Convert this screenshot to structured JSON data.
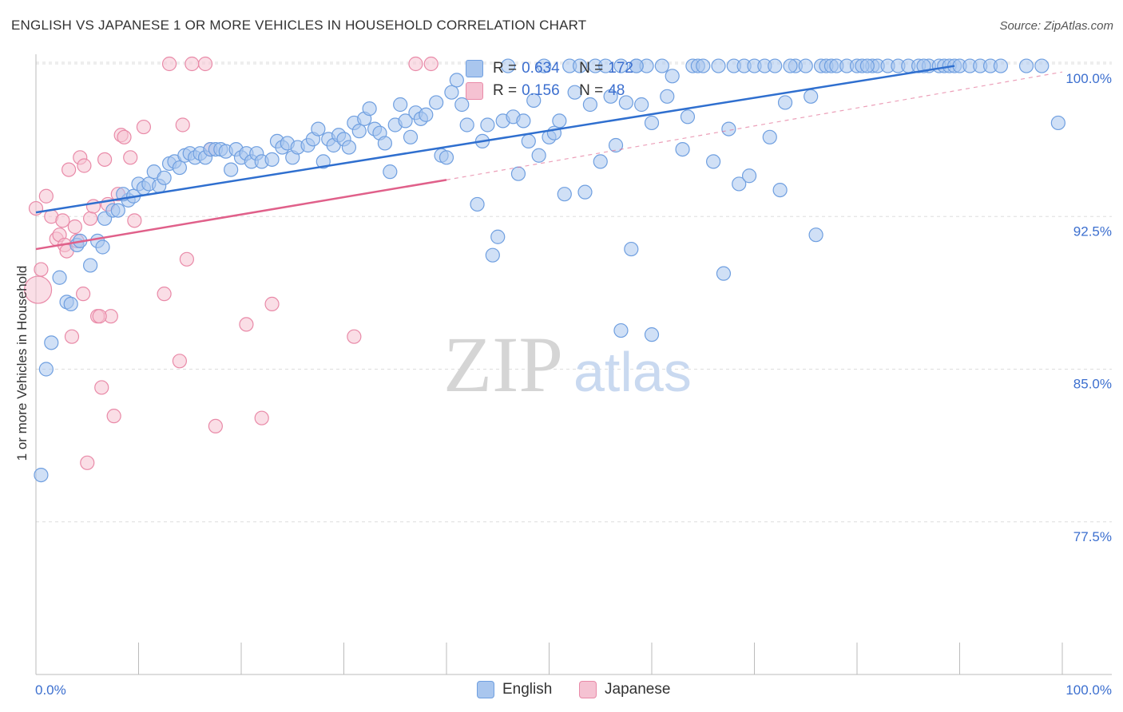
{
  "title": "ENGLISH VS JAPANESE 1 OR MORE VEHICLES IN HOUSEHOLD CORRELATION CHART",
  "source": "Source: ZipAtlas.com",
  "watermark": {
    "zip": "ZIP",
    "atlas": "atlas"
  },
  "colors": {
    "english": "#6f9fe0",
    "english_fill": "#a9c6ee",
    "english_line": "#2f6fcf",
    "japanese": "#e98aa8",
    "japanese_fill": "#f5c2d2",
    "japanese_line": "#e0608a",
    "tick_label": "#3c6fcf",
    "grid": "#dddddd"
  },
  "stats": {
    "english": {
      "r_label": "R = ",
      "r_value": "0.634",
      "n_label": "N = ",
      "n_value": "172"
    },
    "japanese": {
      "r_label": "R = ",
      "r_value": "0.156",
      "n_label": "N = ",
      "n_value": "48"
    }
  },
  "legend": {
    "english": "English",
    "japanese": "Japanese"
  },
  "chart_data": {
    "type": "scatter",
    "title": "ENGLISH VS JAPANESE 1 OR MORE VEHICLES IN HOUSEHOLD CORRELATION CHART",
    "xlabel": "",
    "ylabel": "1 or more Vehicles in Household",
    "xlim": [
      0,
      100
    ],
    "ylim": [
      70,
      100
    ],
    "x_tick_labels": [
      "0.0%",
      "100.0%"
    ],
    "y_ticks": [
      77.5,
      85.0,
      92.5,
      100.0
    ],
    "y_tick_labels": [
      "77.5%",
      "85.0%",
      "92.5%",
      "100.0%"
    ],
    "grid": true,
    "legend_position": "bottom-center",
    "series": [
      {
        "name": "English",
        "trend": {
          "x": [
            0,
            89.5
          ],
          "y": [
            92.7,
            99.9
          ]
        },
        "points": [
          [
            0.5,
            79.8
          ],
          [
            1,
            85
          ],
          [
            1.5,
            86.3
          ],
          [
            2.3,
            89.5
          ],
          [
            3,
            88.3
          ],
          [
            3.4,
            88.2
          ],
          [
            4,
            91.1
          ],
          [
            4.3,
            91.3
          ],
          [
            5.3,
            90.1
          ],
          [
            6,
            91.3
          ],
          [
            6.5,
            91
          ],
          [
            6.7,
            92.4
          ],
          [
            7.5,
            92.8
          ],
          [
            8,
            92.8
          ],
          [
            9,
            93.3
          ],
          [
            8.5,
            93.6
          ],
          [
            9.5,
            93.5
          ],
          [
            10,
            94.1
          ],
          [
            10.5,
            93.9
          ],
          [
            11,
            94.1
          ],
          [
            11.5,
            94.7
          ],
          [
            12,
            94
          ],
          [
            12.5,
            94.4
          ],
          [
            13,
            95.1
          ],
          [
            13.5,
            95.2
          ],
          [
            14,
            94.9
          ],
          [
            14.5,
            95.5
          ],
          [
            15,
            95.6
          ],
          [
            15.5,
            95.4
          ],
          [
            16,
            95.6
          ],
          [
            16.5,
            95.4
          ],
          [
            17,
            95.8
          ],
          [
            17.5,
            95.8
          ],
          [
            18,
            95.8
          ],
          [
            18.5,
            95.7
          ],
          [
            19,
            94.8
          ],
          [
            19.5,
            95.8
          ],
          [
            20,
            95.4
          ],
          [
            20.5,
            95.6
          ],
          [
            21,
            95.2
          ],
          [
            21.5,
            95.6
          ],
          [
            22,
            95.2
          ],
          [
            23,
            95.3
          ],
          [
            23.5,
            96.2
          ],
          [
            24,
            95.9
          ],
          [
            24.5,
            96.1
          ],
          [
            25,
            95.4
          ],
          [
            25.5,
            95.9
          ],
          [
            26.5,
            96
          ],
          [
            27,
            96.3
          ],
          [
            27.5,
            96.8
          ],
          [
            28,
            95.2
          ],
          [
            28.5,
            96.3
          ],
          [
            29,
            96
          ],
          [
            29.5,
            96.5
          ],
          [
            30,
            96.3
          ],
          [
            30.5,
            95.9
          ],
          [
            31,
            97.1
          ],
          [
            31.5,
            96.7
          ],
          [
            32,
            97.3
          ],
          [
            32.5,
            97.8
          ],
          [
            33,
            96.8
          ],
          [
            33.5,
            96.6
          ],
          [
            34,
            96.1
          ],
          [
            34.5,
            94.7
          ],
          [
            35,
            97
          ],
          [
            35.5,
            98
          ],
          [
            36,
            97.2
          ],
          [
            36.5,
            96.4
          ],
          [
            37,
            97.6
          ],
          [
            37.5,
            97.3
          ],
          [
            38,
            97.5
          ],
          [
            39,
            98.1
          ],
          [
            39.5,
            95.5
          ],
          [
            40,
            95.4
          ],
          [
            40.5,
            98.6
          ],
          [
            41,
            99.2
          ],
          [
            41.5,
            98
          ],
          [
            42,
            97
          ],
          [
            43,
            93.1
          ],
          [
            43.5,
            96.2
          ],
          [
            44,
            97
          ],
          [
            44.5,
            90.6
          ],
          [
            45,
            91.5
          ],
          [
            45.5,
            97.2
          ],
          [
            46,
            99.9
          ],
          [
            46.5,
            97.4
          ],
          [
            47,
            94.6
          ],
          [
            47.5,
            97.2
          ],
          [
            48,
            96.2
          ],
          [
            48.5,
            98.2
          ],
          [
            49,
            95.5
          ],
          [
            49.5,
            99.9
          ],
          [
            50,
            96.4
          ],
          [
            50.5,
            96.6
          ],
          [
            51,
            97.2
          ],
          [
            51.5,
            93.6
          ],
          [
            52,
            99.9
          ],
          [
            52.5,
            98.6
          ],
          [
            53,
            99.9
          ],
          [
            53.5,
            93.7
          ],
          [
            54,
            98
          ],
          [
            54.5,
            99.9
          ],
          [
            55,
            95.2
          ],
          [
            55.5,
            99.9
          ],
          [
            56,
            98.4
          ],
          [
            56.5,
            96
          ],
          [
            57,
            99.9
          ],
          [
            57.5,
            98.1
          ],
          [
            58,
            90.9
          ],
          [
            58.5,
            99.9
          ],
          [
            59,
            98
          ],
          [
            59.5,
            99.9
          ],
          [
            60,
            97.1
          ],
          [
            61,
            99.9
          ],
          [
            61.5,
            98.4
          ],
          [
            62,
            99.4
          ],
          [
            63,
            95.8
          ],
          [
            63.5,
            97.4
          ],
          [
            64,
            99.9
          ],
          [
            64.5,
            99.9
          ],
          [
            65,
            99.9
          ],
          [
            66,
            95.2
          ],
          [
            66.5,
            99.9
          ],
          [
            67,
            89.7
          ],
          [
            67.5,
            96.8
          ],
          [
            68,
            99.9
          ],
          [
            68.5,
            94.1
          ],
          [
            69,
            99.9
          ],
          [
            69.5,
            94.5
          ],
          [
            70,
            99.9
          ],
          [
            71,
            99.9
          ],
          [
            71.5,
            96.4
          ],
          [
            72,
            99.9
          ],
          [
            72.5,
            93.8
          ],
          [
            73,
            98.1
          ],
          [
            74,
            99.9
          ],
          [
            75,
            99.9
          ],
          [
            75.5,
            98.4
          ],
          [
            76,
            91.6
          ],
          [
            76.5,
            99.9
          ],
          [
            77,
            99.9
          ],
          [
            77.5,
            99.9
          ],
          [
            78,
            99.9
          ],
          [
            79,
            99.9
          ],
          [
            80,
            99.9
          ],
          [
            81.5,
            99.9
          ],
          [
            82,
            99.9
          ],
          [
            83,
            99.9
          ],
          [
            84,
            99.9
          ],
          [
            85,
            99.9
          ],
          [
            86,
            99.9
          ],
          [
            87,
            99.9
          ],
          [
            88,
            99.9
          ],
          [
            88.5,
            99.9
          ],
          [
            89,
            99.9
          ],
          [
            89.5,
            99.9
          ],
          [
            90,
            99.9
          ],
          [
            91,
            99.9
          ],
          [
            92,
            99.9
          ],
          [
            93,
            99.9
          ],
          [
            94,
            99.9
          ],
          [
            96.5,
            99.9
          ],
          [
            98,
            99.9
          ],
          [
            99.6,
            97.1
          ],
          [
            57,
            86.9
          ],
          [
            60,
            86.7
          ],
          [
            58.5,
            99.9
          ],
          [
            73.5,
            99.9
          ],
          [
            80.5,
            99.9
          ],
          [
            86.5,
            99.9
          ],
          [
            81,
            99.9
          ]
        ]
      },
      {
        "name": "Japanese",
        "trend": {
          "x": [
            0,
            40
          ],
          "y": [
            90.9,
            94.3
          ]
        },
        "trend_dashed": {
          "x": [
            40,
            100
          ],
          "y": [
            94.3,
            99.6
          ]
        },
        "points": [
          [
            0,
            92.9
          ],
          [
            0.5,
            89.9
          ],
          [
            1,
            93.5
          ],
          [
            1.5,
            92.5
          ],
          [
            2,
            91.4
          ],
          [
            2.3,
            91.6
          ],
          [
            2.6,
            92.3
          ],
          [
            2.8,
            91.1
          ],
          [
            3,
            90.8
          ],
          [
            3.2,
            94.8
          ],
          [
            3.5,
            86.6
          ],
          [
            3.8,
            92
          ],
          [
            4,
            91.3
          ],
          [
            4.3,
            95.4
          ],
          [
            4.6,
            88.7
          ],
          [
            4.7,
            95
          ],
          [
            5,
            80.4
          ],
          [
            5.3,
            92.4
          ],
          [
            5.6,
            93
          ],
          [
            6,
            87.6
          ],
          [
            6.4,
            84.1
          ],
          [
            6.7,
            95.3
          ],
          [
            7,
            93.1
          ],
          [
            7.3,
            87.6
          ],
          [
            7.6,
            82.7
          ],
          [
            8,
            93.6
          ],
          [
            8.3,
            96.5
          ],
          [
            8.6,
            96.4
          ],
          [
            9.2,
            95.4
          ],
          [
            9.6,
            92.3
          ],
          [
            10.5,
            96.9
          ],
          [
            12.5,
            88.7
          ],
          [
            13,
            100
          ],
          [
            14,
            85.4
          ],
          [
            14.3,
            97
          ],
          [
            14.7,
            90.4
          ],
          [
            15.2,
            100
          ],
          [
            16.5,
            100
          ],
          [
            17,
            95.8
          ],
          [
            17.5,
            82.2
          ],
          [
            20.5,
            87.2
          ],
          [
            22,
            82.6
          ],
          [
            23,
            88.2
          ],
          [
            31,
            86.6
          ],
          [
            37,
            100
          ],
          [
            38.5,
            100
          ],
          [
            0.2,
            88.9
          ],
          [
            6.2,
            87.6
          ]
        ]
      }
    ]
  }
}
